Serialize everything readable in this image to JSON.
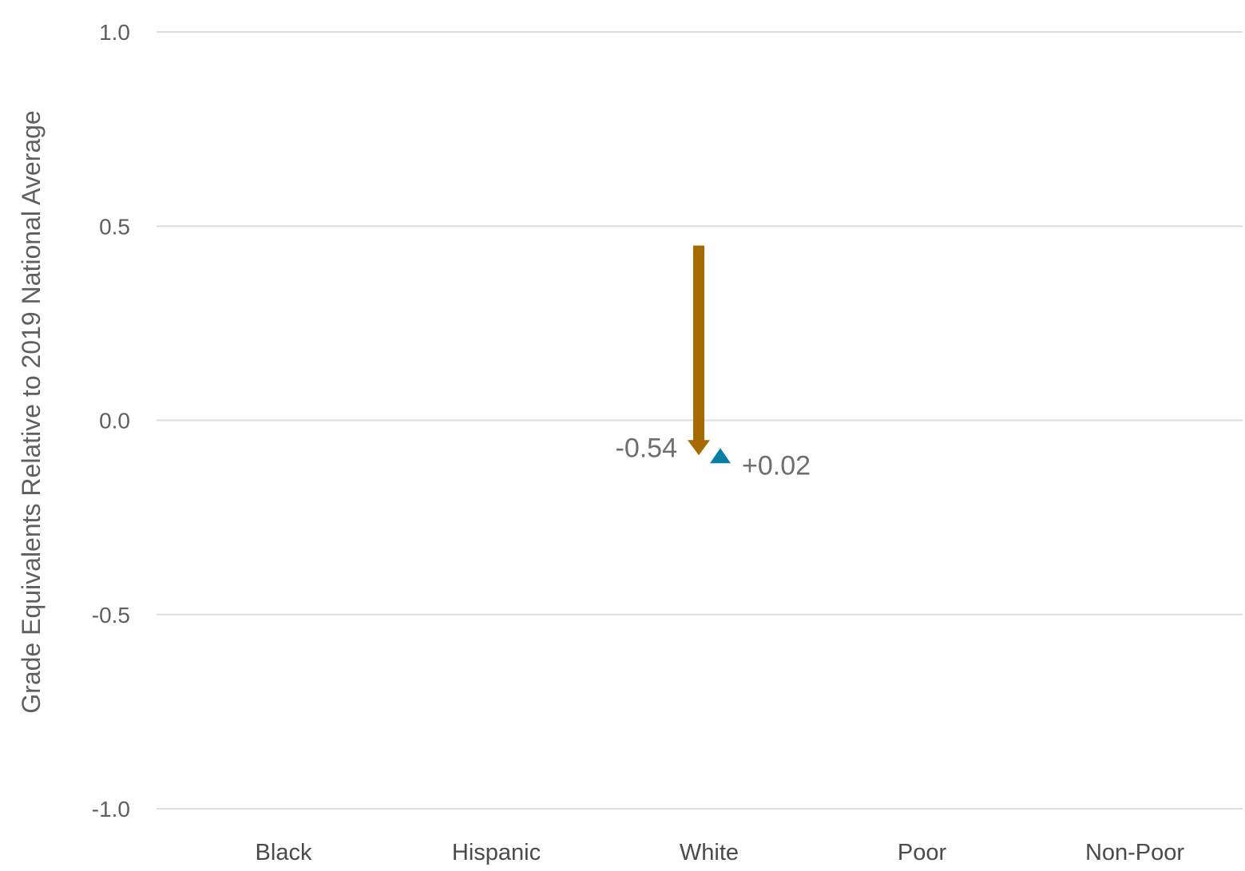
{
  "chart_data": {
    "type": "arrow",
    "title": "",
    "xlabel": "",
    "ylabel": "Grade Equivalents Relative to 2019 National Average",
    "ylim": [
      -1.0,
      1.0
    ],
    "yticks": [
      1.0,
      0.5,
      0.0,
      -0.5,
      -1.0
    ],
    "ytick_labels": [
      "1.0",
      "0.5",
      "0.0",
      "-0.5",
      "-1.0"
    ],
    "categories": [
      "Black",
      "Hispanic",
      "White",
      "Poor",
      "Non-Poor"
    ],
    "grid": true,
    "colors": {
      "decline": "#a66a00",
      "recovery": "#0a7fa6"
    },
    "series": [
      {
        "category": "White",
        "kind": "decline-arrow",
        "from": 0.45,
        "to": -0.09,
        "change_label": "-0.54"
      },
      {
        "category": "White",
        "kind": "recovery-marker",
        "value": -0.09,
        "change_label": "+0.02"
      }
    ]
  }
}
